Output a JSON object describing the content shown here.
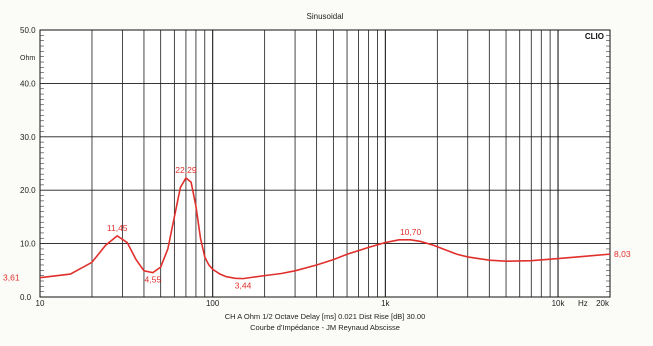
{
  "chart_data": {
    "type": "line",
    "title": "Sinusoidal",
    "brand": "CLIO",
    "ylabel": "Ohm",
    "xunit": "Hz",
    "xscale": "log",
    "xlim": [
      10,
      20000
    ],
    "ylim": [
      0,
      50
    ],
    "yticks": [
      "50.0",
      "40.0",
      "30.0",
      "20.0",
      "10.0",
      "0.0"
    ],
    "xticks": [
      "10",
      "100",
      "1k",
      "10k",
      "20k"
    ],
    "grid": true,
    "footer_line1": "CH A   Ohm   1/2 Octave   Delay [ms] 0.021   Dist Rise [dB] 30.00",
    "footer_line2": "Courbe d'Impédance - JM Reynaud Abscisse",
    "series": [
      {
        "color": "#e0302c",
        "x": [
          10,
          15,
          20,
          24,
          28,
          32,
          36,
          40,
          45,
          50,
          55,
          60,
          65,
          70,
          75,
          80,
          85,
          90,
          95,
          100,
          110,
          120,
          135,
          150,
          170,
          200,
          250,
          300,
          400,
          500,
          600,
          800,
          1000,
          1200,
          1400,
          1600,
          1900,
          2200,
          2600,
          3000,
          4000,
          5000,
          7000,
          10000,
          14000,
          20000
        ],
        "y": [
          3.61,
          4.3,
          6.5,
          9.7,
          11.45,
          10.2,
          7.0,
          4.9,
          4.55,
          5.6,
          9.0,
          15.0,
          20.5,
          22.29,
          21.5,
          17.0,
          11.0,
          7.5,
          6.0,
          5.2,
          4.3,
          3.8,
          3.5,
          3.44,
          3.7,
          4.0,
          4.4,
          4.9,
          6.0,
          7.0,
          8.0,
          9.3,
          10.2,
          10.7,
          10.7,
          10.4,
          9.7,
          8.9,
          8.0,
          7.5,
          6.9,
          6.7,
          6.8,
          7.2,
          7.6,
          8.03
        ]
      }
    ],
    "annotations": [
      {
        "text": "3,61",
        "x": 10,
        "y": 3.61
      },
      {
        "text": "11,45",
        "x": 28,
        "y": 11.45
      },
      {
        "text": "4,55",
        "x": 45,
        "y": 4.55
      },
      {
        "text": "22,29",
        "x": 70,
        "y": 22.29
      },
      {
        "text": "3,44",
        "x": 150,
        "y": 3.44
      },
      {
        "text": "10,70",
        "x": 1400,
        "y": 10.7
      },
      {
        "text": "8,03",
        "x": 20000,
        "y": 8.03
      }
    ]
  }
}
